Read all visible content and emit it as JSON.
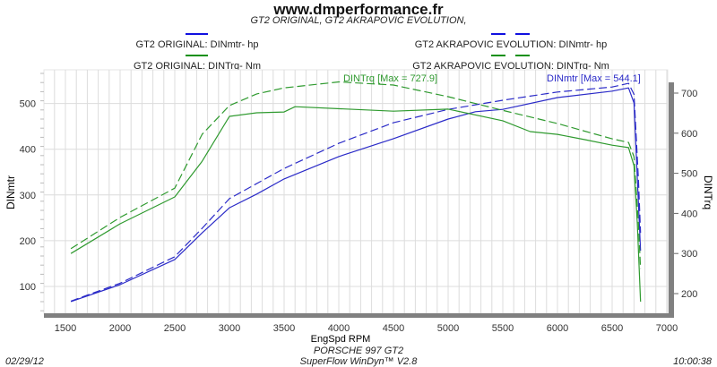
{
  "header": {
    "title": "www.dmperformance.fr",
    "subtitle": "GT2 ORIGINAL, GT2 AKRAPOVIC EVOLUTION,"
  },
  "legend": {
    "orig_power": "GT2 ORIGINAL: DINmtr-  hp",
    "orig_torque": "GT2 ORIGINAL: DINTrq-  Nm",
    "evo_power": "GT2 AKRAPOVIC EVOLUTION: DINmtr-  hp",
    "evo_torque": "GT2 AKRAPOVIC EVOLUTION: DINTrq-  Nm"
  },
  "footer": {
    "car": "PORSCHE 997 GT2",
    "software": "SuperFlow WinDyn™ V2.8",
    "date": "02/29/12",
    "time": "10:00:38"
  },
  "colors": {
    "power": "#2b2bc8",
    "torque": "#2f9a2f",
    "grid": "#dcdcdc",
    "axisbar": "#808080"
  },
  "chart_data": {
    "type": "line",
    "title": "www.dmperformance.fr",
    "xlabel": "EngSpd  RPM",
    "ylabel_left": "DINmtr",
    "ylabel_right": "DINTrq",
    "xlim": [
      1300,
      7050
    ],
    "ylim_left": [
      40,
      565
    ],
    "ylim_right": [
      150,
      760
    ],
    "x_ticks": [
      1500,
      2000,
      2500,
      3000,
      3500,
      4000,
      4500,
      5000,
      5500,
      6000,
      6500,
      7000
    ],
    "y_left_ticks": [
      100,
      200,
      300,
      400,
      500
    ],
    "y_right_ticks": [
      200,
      300,
      400,
      500,
      600,
      700
    ],
    "grid": true,
    "annotations": {
      "torque_max": "DINTrq [Max = 727.9]",
      "power_max": "DINmtr [Max = 544.1]"
    },
    "series": [
      {
        "name": "GT2 ORIGINAL: DINmtr- hp",
        "axis": "left",
        "color": "power",
        "style": "solid",
        "x": [
          1550,
          2000,
          2500,
          2750,
          3000,
          3250,
          3500,
          4000,
          4500,
          5000,
          5250,
          5500,
          6000,
          6500,
          6650,
          6700,
          6730,
          6760
        ],
        "y": [
          67,
          104,
          159,
          217,
          272,
          302,
          335,
          384,
          423,
          466,
          482,
          487,
          513,
          527,
          534,
          501,
          335,
          178
        ]
      },
      {
        "name": "GT2 AKRAPOVIC EVOLUTION: DINmtr- hp",
        "axis": "left",
        "color": "power",
        "style": "dashed",
        "x": [
          1550,
          2000,
          2500,
          2750,
          3000,
          3500,
          4000,
          4500,
          5000,
          5500,
          6000,
          6500,
          6650,
          6700,
          6740,
          6760
        ],
        "y": [
          68,
          107,
          165,
          227,
          292,
          358,
          413,
          458,
          487,
          507,
          525,
          536,
          544,
          520,
          335,
          217
        ]
      },
      {
        "name": "GT2 ORIGINAL: DINTrq- Nm",
        "axis": "right",
        "color": "torque",
        "style": "solid",
        "x": [
          1550,
          2000,
          2500,
          2750,
          3000,
          3250,
          3500,
          3600,
          4500,
          5000,
          5500,
          5750,
          6000,
          6250,
          6500,
          6650,
          6700,
          6730,
          6760
        ],
        "y": [
          300,
          374,
          441,
          530,
          642,
          651,
          653,
          666,
          655,
          660,
          631,
          604,
          597,
          584,
          570,
          564,
          519,
          374,
          180
        ]
      },
      {
        "name": "GT2 AKRAPOVIC EVOLUTION: DINTrq- Nm",
        "axis": "right",
        "color": "torque",
        "style": "dashed",
        "x": [
          1550,
          2000,
          2500,
          2750,
          3000,
          3250,
          3500,
          4000,
          4500,
          5000,
          5500,
          6000,
          6500,
          6650,
          6700,
          6740,
          6760
        ],
        "y": [
          312,
          390,
          463,
          597,
          669,
          698,
          713,
          727.9,
          720,
          691,
          657,
          624,
          586,
          577,
          541,
          374,
          262
        ]
      }
    ]
  }
}
